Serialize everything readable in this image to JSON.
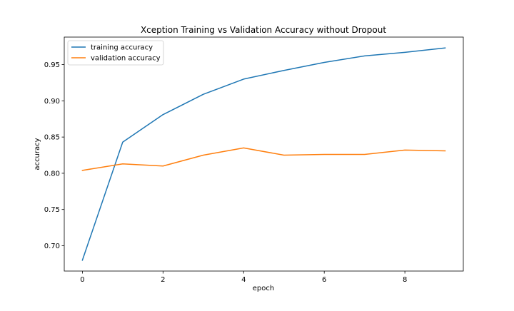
{
  "chart_data": {
    "type": "line",
    "title": "Xception Training vs Validation Accuracy without Dropout",
    "xlabel": "epoch",
    "ylabel": "accuracy",
    "x": [
      0,
      1,
      2,
      3,
      4,
      5,
      6,
      7,
      8,
      9
    ],
    "xlim": [
      -0.45,
      9.45
    ],
    "ylim": [
      0.665,
      0.988
    ],
    "xticks": [
      0,
      2,
      4,
      6,
      8
    ],
    "yticks": [
      0.7,
      0.75,
      0.8,
      0.85,
      0.9,
      0.95
    ],
    "xtick_labels": [
      "0",
      "2",
      "4",
      "6",
      "8"
    ],
    "ytick_labels": [
      "0.70",
      "0.75",
      "0.80",
      "0.85",
      "0.90",
      "0.95"
    ],
    "grid": false,
    "legend_position": "top-left",
    "series": [
      {
        "name": "training accuracy",
        "color": "#1f77b4",
        "values": [
          0.68,
          0.843,
          0.881,
          0.909,
          0.93,
          0.942,
          0.953,
          0.962,
          0.967,
          0.973
        ]
      },
      {
        "name": "validation accuracy",
        "color": "#ff7f0e",
        "values": [
          0.804,
          0.813,
          0.81,
          0.825,
          0.835,
          0.825,
          0.826,
          0.826,
          0.832,
          0.831
        ]
      }
    ]
  }
}
